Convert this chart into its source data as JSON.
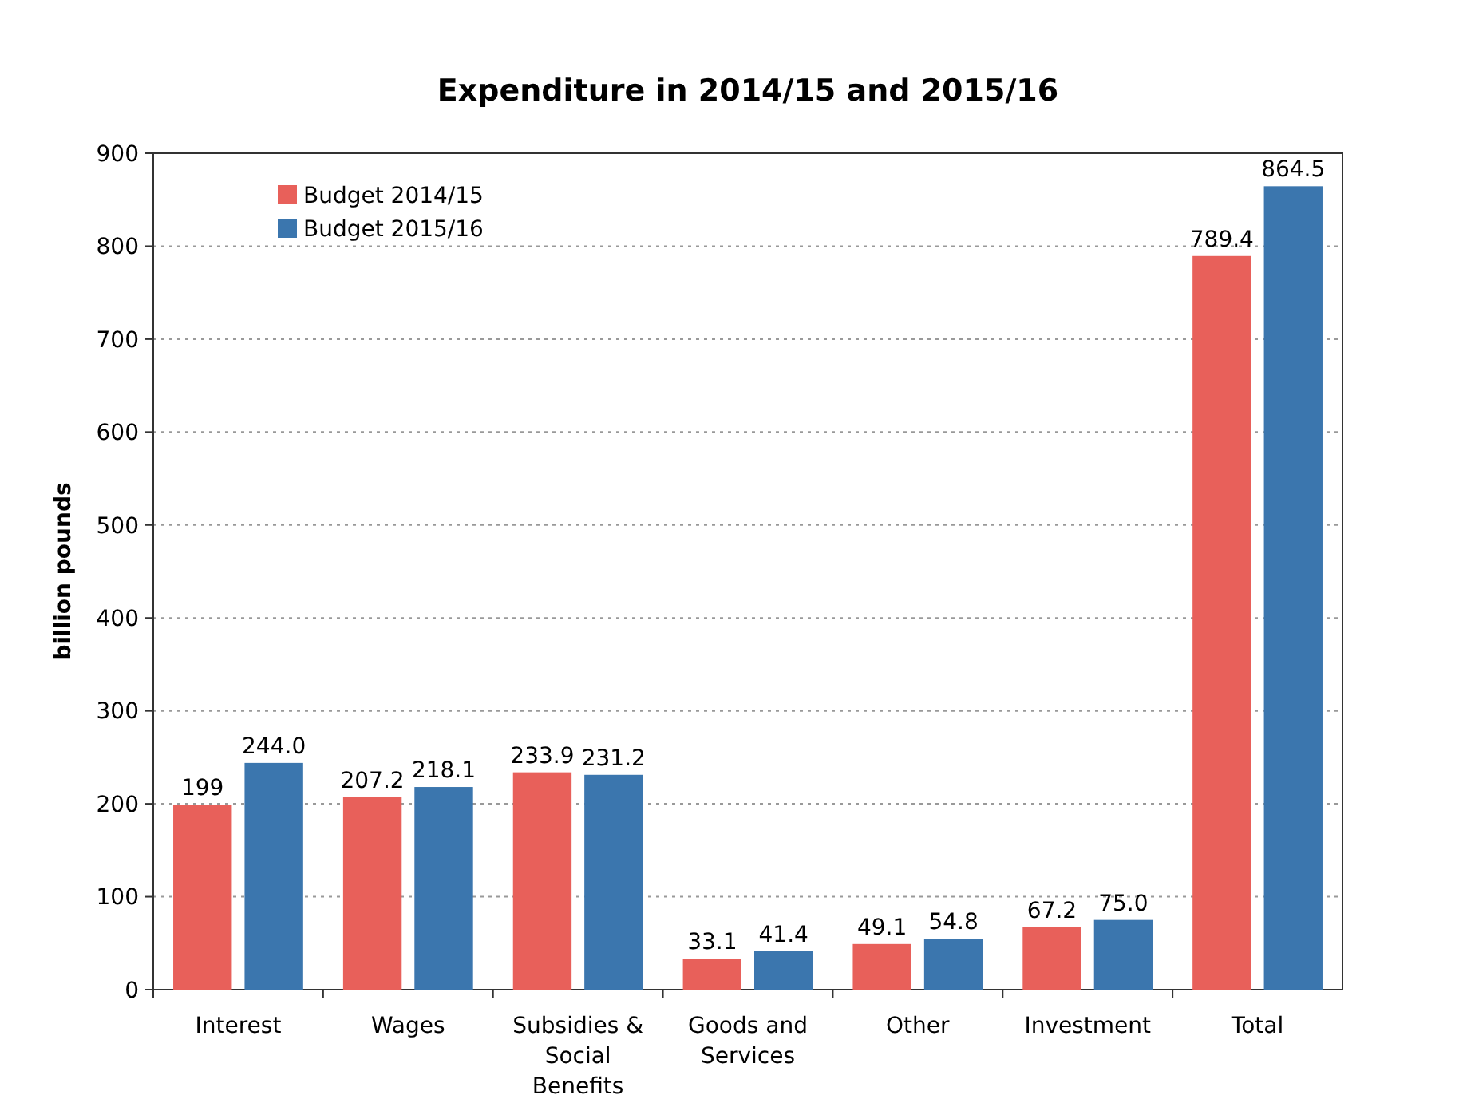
{
  "chart_data": {
    "type": "bar",
    "title": "Expenditure in 2014/15 and 2015/16",
    "ylabel": "billion pounds",
    "categories": [
      "Interest",
      "Wages",
      "Subsidies & Social Benefits",
      "Goods and Services",
      "Other",
      "Investment",
      "Total"
    ],
    "series": [
      {
        "name": "Budget 2014/15",
        "color": "#e8605a",
        "values": [
          199,
          207.2,
          233.9,
          33.1,
          49.1,
          67.2,
          789.4
        ],
        "value_labels": [
          "199",
          "207.2",
          "233.9",
          "33.1",
          "49.1",
          "67.2",
          "789.4"
        ]
      },
      {
        "name": "Budget 2015/16",
        "color": "#3b76ae",
        "values": [
          244.0,
          218.1,
          231.2,
          41.4,
          54.8,
          75.0,
          864.5
        ],
        "value_labels": [
          "244.0",
          "218.1",
          "231.2",
          "41.4",
          "54.8",
          "75.0",
          "864.5"
        ]
      }
    ],
    "ylim": [
      0,
      900
    ],
    "yticks": [
      0,
      100,
      200,
      300,
      400,
      500,
      600,
      700,
      800,
      900
    ],
    "grid": "y",
    "legend": "top left"
  }
}
